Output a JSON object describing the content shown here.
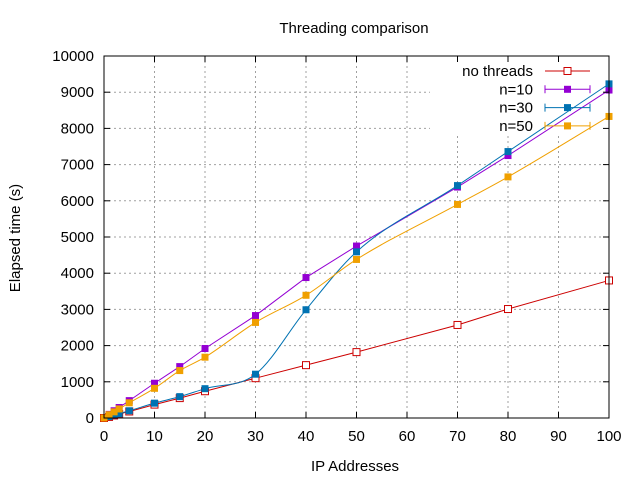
{
  "chart_data": {
    "type": "line",
    "title": "Threading comparison",
    "xlabel": "IP Addresses",
    "ylabel": "Elapsed time (s)",
    "xlim": [
      0,
      100
    ],
    "ylim": [
      0,
      10000
    ],
    "xticks": [
      0,
      10,
      20,
      30,
      40,
      50,
      60,
      70,
      80,
      90,
      100
    ],
    "yticks": [
      0,
      1000,
      2000,
      3000,
      4000,
      5000,
      6000,
      7000,
      8000,
      9000,
      10000
    ],
    "grid": true,
    "legend_position": "top-right",
    "series": [
      {
        "name": "no threads",
        "color": "#cc0000",
        "marker": "open-square",
        "smooth": false,
        "x": [
          0,
          1,
          2,
          3,
          5,
          10,
          15,
          20,
          30,
          40,
          50,
          70,
          80,
          100
        ],
        "y": [
          0,
          30,
          70,
          110,
          180,
          370,
          550,
          740,
          1100,
          1460,
          1820,
          2570,
          3010,
          3800
        ]
      },
      {
        "name": "n=10",
        "color": "#9400d3",
        "marker": "filled-square",
        "smooth": false,
        "x": [
          0,
          1,
          2,
          3,
          5,
          10,
          15,
          20,
          30,
          40,
          50,
          70,
          80,
          100
        ],
        "y": [
          0,
          100,
          200,
          290,
          480,
          960,
          1420,
          1920,
          2830,
          3880,
          4750,
          6380,
          7250,
          9060
        ]
      },
      {
        "name": "n=30",
        "color": "#0072b2",
        "marker": "filled-square",
        "smooth": true,
        "x": [
          0,
          1,
          2,
          3,
          5,
          10,
          15,
          20,
          30,
          40,
          50,
          70,
          80,
          100
        ],
        "y": [
          0,
          40,
          80,
          120,
          200,
          410,
          590,
          810,
          1210,
          2990,
          4590,
          6420,
          7360,
          9230
        ]
      },
      {
        "name": "n=50",
        "color": "#f0a000",
        "marker": "filled-square",
        "smooth": true,
        "x": [
          0,
          1,
          2,
          3,
          5,
          10,
          15,
          20,
          30,
          40,
          50,
          70,
          80,
          100
        ],
        "y": [
          0,
          90,
          170,
          250,
          420,
          820,
          1310,
          1680,
          2640,
          3390,
          4380,
          5900,
          6660,
          8330
        ]
      }
    ]
  }
}
